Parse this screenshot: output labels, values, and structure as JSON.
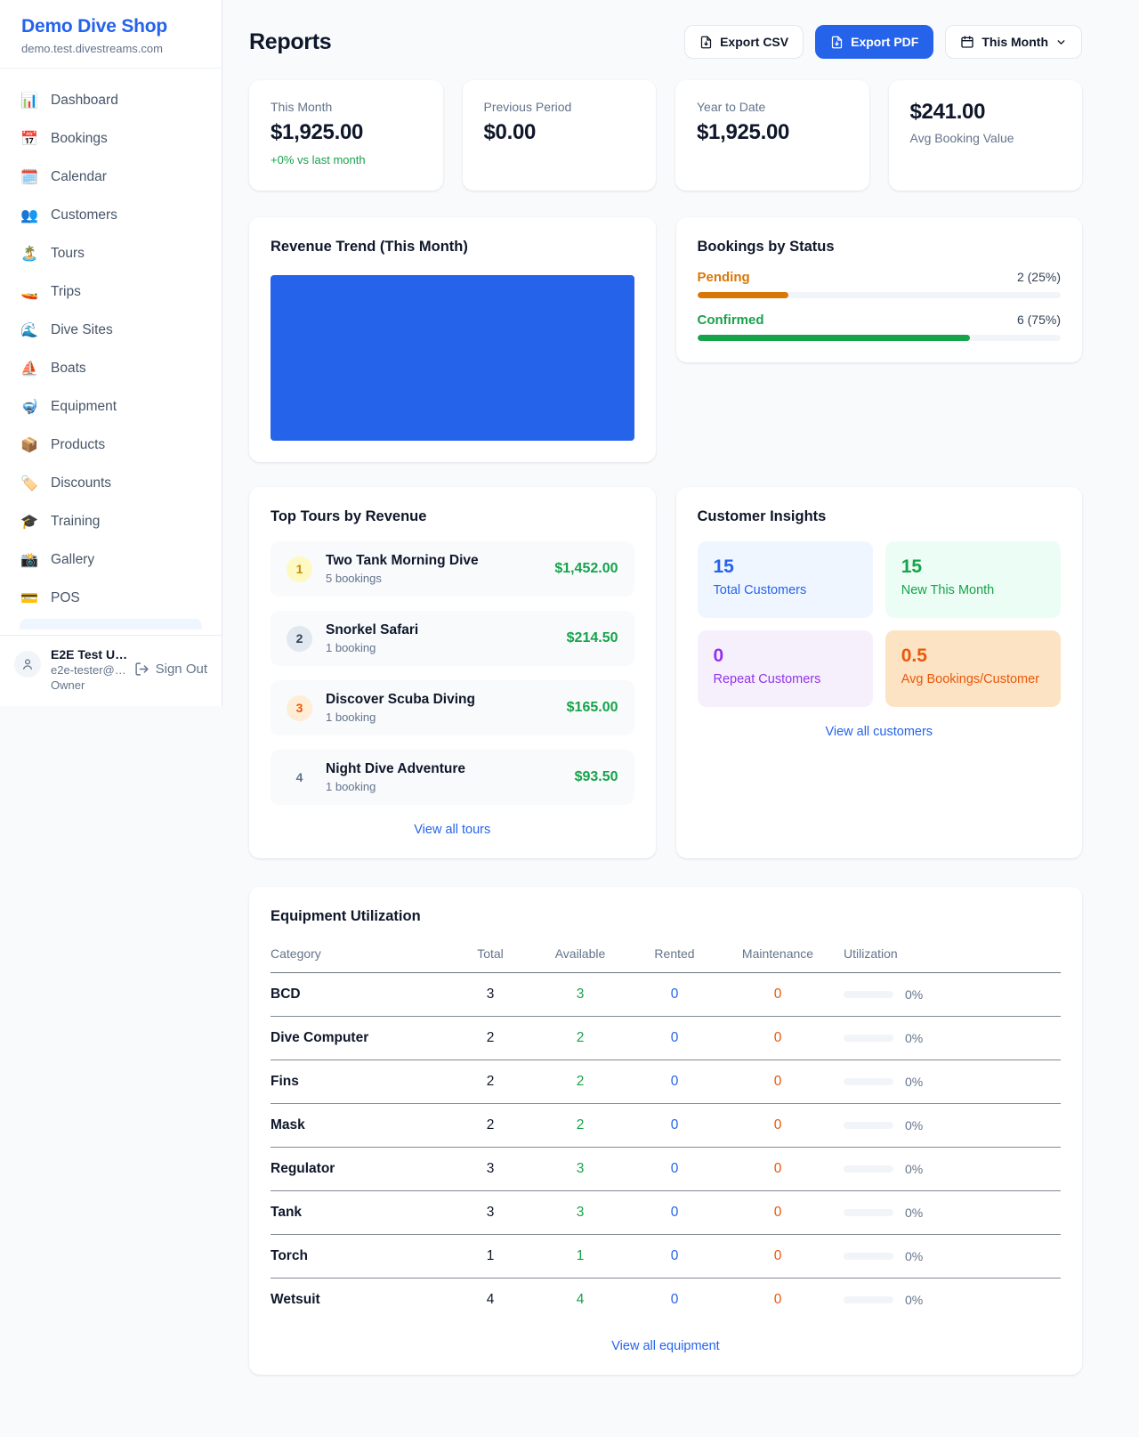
{
  "colors": {
    "accent": "#2563eb",
    "green": "#16a34a",
    "pending_orange": "#d97706",
    "maintenance_orange": "#ea580c",
    "purple": "#9333ea"
  },
  "sidebar": {
    "brand": "Demo Dive Shop",
    "domain": "demo.test.divestreams.com",
    "items": [
      {
        "icon": "📊",
        "label": "Dashboard"
      },
      {
        "icon": "📅",
        "label": "Bookings"
      },
      {
        "icon": "🗓️",
        "label": "Calendar"
      },
      {
        "icon": "👥",
        "label": "Customers"
      },
      {
        "icon": "🏝️",
        "label": "Tours"
      },
      {
        "icon": "🚤",
        "label": "Trips"
      },
      {
        "icon": "🌊",
        "label": "Dive Sites"
      },
      {
        "icon": "⛵",
        "label": "Boats"
      },
      {
        "icon": "🤿",
        "label": "Equipment"
      },
      {
        "icon": "📦",
        "label": "Products"
      },
      {
        "icon": "🏷️",
        "label": "Discounts"
      },
      {
        "icon": "🎓",
        "label": "Training"
      },
      {
        "icon": "📸",
        "label": "Gallery"
      },
      {
        "icon": "💳",
        "label": "POS"
      }
    ],
    "user": {
      "name": "E2E Test U…",
      "email": "e2e-tester@…",
      "role": "Owner",
      "signout": "Sign Out"
    }
  },
  "header": {
    "title": "Reports",
    "export_csv": "Export CSV",
    "export_pdf": "Export PDF",
    "period": "This Month"
  },
  "stats": [
    {
      "label": "This Month",
      "value": "$1,925.00",
      "delta": "+0% vs last month"
    },
    {
      "label": "Previous Period",
      "value": "$0.00"
    },
    {
      "label": "Year to Date",
      "value": "$1,925.00"
    },
    {
      "label": "Avg Booking Value",
      "value": "$241.00"
    }
  ],
  "revenue_trend": {
    "title": "Revenue Trend (This Month)"
  },
  "bookings_by_status": {
    "title": "Bookings by Status",
    "rows": [
      {
        "label": "Pending",
        "count": "2 (25%)",
        "pct": 25
      },
      {
        "label": "Confirmed",
        "count": "6 (75%)",
        "pct": 75
      }
    ]
  },
  "top_tours": {
    "title": "Top Tours by Revenue",
    "rows": [
      {
        "rank": "1",
        "name": "Two Tank Morning Dive",
        "bookings": "5 bookings",
        "amount": "$1,452.00"
      },
      {
        "rank": "2",
        "name": "Snorkel Safari",
        "bookings": "1 booking",
        "amount": "$214.50"
      },
      {
        "rank": "3",
        "name": "Discover Scuba Diving",
        "bookings": "1 booking",
        "amount": "$165.00"
      },
      {
        "rank": "4",
        "name": "Night Dive Adventure",
        "bookings": "1 booking",
        "amount": "$93.50"
      }
    ],
    "link": "View all tours"
  },
  "customer_insights": {
    "title": "Customer Insights",
    "tiles": [
      {
        "value": "15",
        "label": "Total Customers"
      },
      {
        "value": "15",
        "label": "New This Month"
      },
      {
        "value": "0",
        "label": "Repeat Customers"
      },
      {
        "value": "0.5",
        "label": "Avg Bookings/Customer"
      }
    ],
    "link": "View all customers"
  },
  "equipment": {
    "title": "Equipment Utilization",
    "columns": [
      "Category",
      "Total",
      "Available",
      "Rented",
      "Maintenance",
      "Utilization"
    ],
    "rows": [
      {
        "category": "BCD",
        "total": "3",
        "available": "3",
        "rented": "0",
        "maintenance": "0",
        "utilization": "0%",
        "util_pct": 0
      },
      {
        "category": "Dive Computer",
        "total": "2",
        "available": "2",
        "rented": "0",
        "maintenance": "0",
        "utilization": "0%",
        "util_pct": 0
      },
      {
        "category": "Fins",
        "total": "2",
        "available": "2",
        "rented": "0",
        "maintenance": "0",
        "utilization": "0%",
        "util_pct": 0
      },
      {
        "category": "Mask",
        "total": "2",
        "available": "2",
        "rented": "0",
        "maintenance": "0",
        "utilization": "0%",
        "util_pct": 0
      },
      {
        "category": "Regulator",
        "total": "3",
        "available": "3",
        "rented": "0",
        "maintenance": "0",
        "utilization": "0%",
        "util_pct": 0
      },
      {
        "category": "Tank",
        "total": "3",
        "available": "3",
        "rented": "0",
        "maintenance": "0",
        "utilization": "0%",
        "util_pct": 0
      },
      {
        "category": "Torch",
        "total": "1",
        "available": "1",
        "rented": "0",
        "maintenance": "0",
        "utilization": "0%",
        "util_pct": 0
      },
      {
        "category": "Wetsuit",
        "total": "4",
        "available": "4",
        "rented": "0",
        "maintenance": "0",
        "utilization": "0%",
        "util_pct": 0
      }
    ],
    "link": "View all equipment"
  },
  "chart_data": [
    {
      "type": "bar",
      "title": "Revenue Trend (This Month)",
      "categories": [
        "This Month"
      ],
      "values": [
        1925
      ],
      "note": "single full-area blue bar, no axes or labels visible",
      "bar_color": "#2563eb"
    },
    {
      "type": "bar",
      "title": "Bookings by Status",
      "categories": [
        "Pending",
        "Confirmed"
      ],
      "values": [
        2,
        6
      ],
      "percents": [
        25,
        75
      ],
      "colors": [
        "#d97706",
        "#16a34a"
      ]
    }
  ]
}
